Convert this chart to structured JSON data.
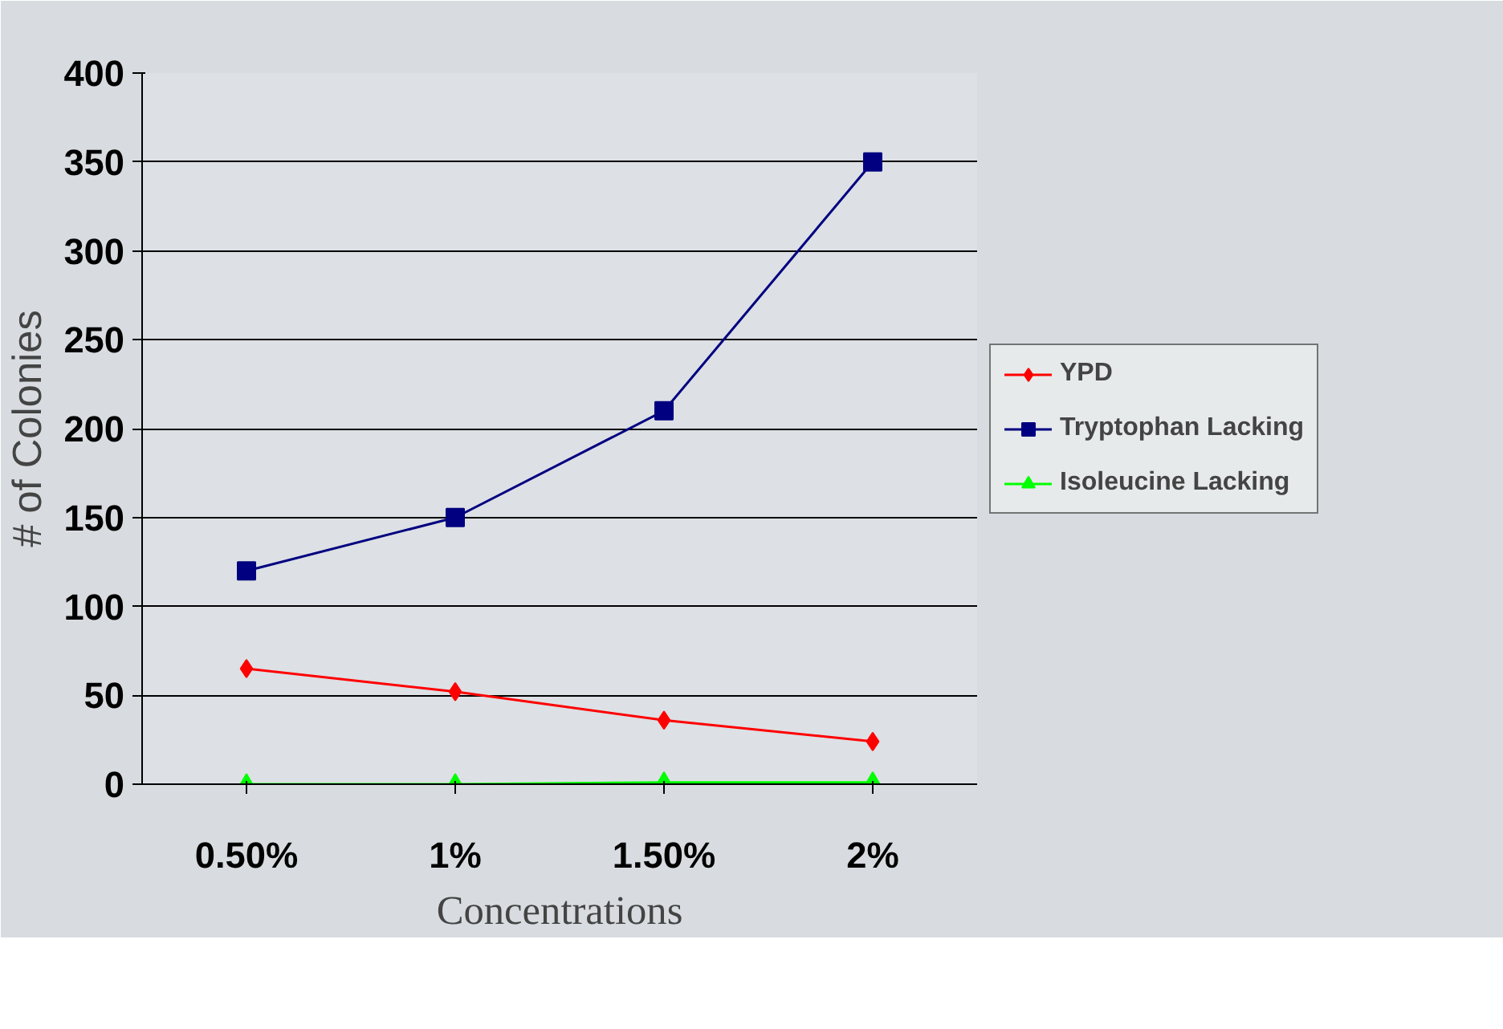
{
  "chart_data": {
    "type": "line",
    "xlabel": "Concentrations",
    "ylabel": "# of Colonies",
    "categories": [
      "0.50%",
      "1%",
      "1.50%",
      "2%"
    ],
    "series": [
      {
        "name": "YPD",
        "color": "#ff0000",
        "marker": "diamond",
        "values": [
          65,
          52,
          36,
          24
        ]
      },
      {
        "name": "Tryptophan Lacking",
        "color": "#000080",
        "marker": "square",
        "values": [
          120,
          150,
          210,
          350
        ]
      },
      {
        "name": "Isoleucine Lacking",
        "color": "#00ff00",
        "marker": "triangle",
        "values": [
          0,
          0,
          1,
          1
        ]
      }
    ],
    "ylim": [
      0,
      400
    ],
    "yticks": [
      0,
      50,
      100,
      150,
      200,
      250,
      300,
      350,
      400
    ],
    "grid": "y",
    "legend": "right"
  }
}
